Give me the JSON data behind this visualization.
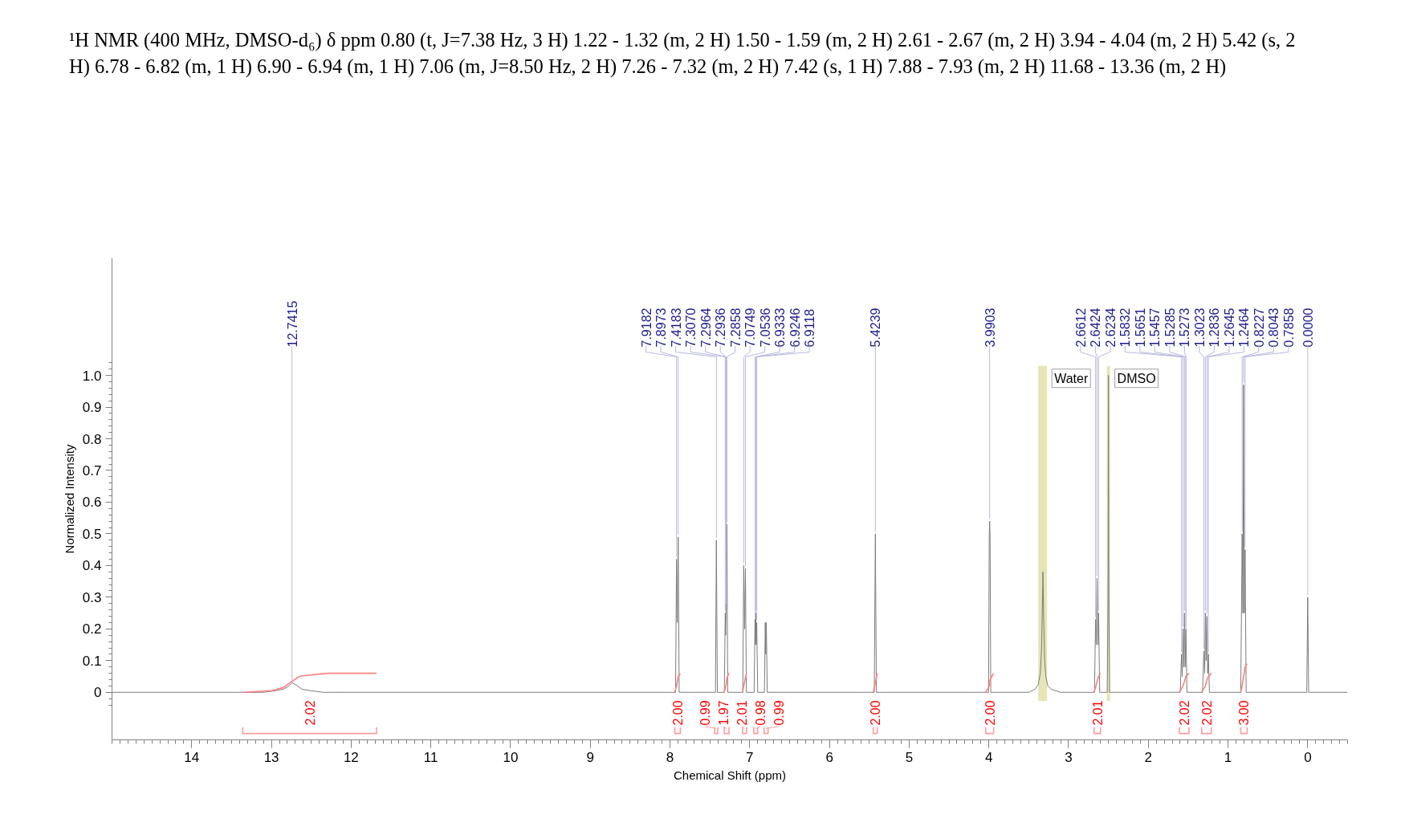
{
  "chart_data": {
    "type": "line",
    "title": "¹H NMR (400 MHz, DMSO-d₆) δ ppm 0.80 (t, J=7.38 Hz, 3 H) 1.22 - 1.32 (m, 2 H) 1.50 - 1.59 (m, 2 H) 2.61 - 2.67 (m, 2 H) 3.94 - 4.04 (m, 2 H) 5.42 (s, 2 H) 6.78 - 6.82 (m, 1 H) 6.90 - 6.94 (m, 1 H) 7.06 (m, J=8.50 Hz, 2 H) 7.26 - 7.32 (m, 2 H) 7.42 (s, 1 H) 7.88 - 7.93 (m, 2 H) 11.68 - 13.36 (m, 2 H)",
    "xlabel": "Chemical Shift (ppm)",
    "ylabel": "Normalized Intensity",
    "xlim": [
      15,
      -0.5
    ],
    "ylim": [
      -0.15,
      1.37
    ],
    "xticks": [
      14,
      13,
      12,
      11,
      10,
      9,
      8,
      7,
      6,
      5,
      4,
      3,
      2,
      1,
      0
    ],
    "yticks": [
      0,
      0.1,
      0.2,
      0.3,
      0.4,
      0.5,
      0.6,
      0.7,
      0.8,
      0.9,
      {
        "value": 1,
        "label": "1.0"
      }
    ],
    "series": [
      {
        "color": "#7c7c7c",
        "x": [
          15.0,
          13.4,
          13.1,
          12.95,
          12.85,
          12.78,
          12.7415,
          12.7,
          12.62,
          12.5,
          12.35,
          12.2,
          7.93,
          7.9182,
          7.908,
          7.8973,
          7.885,
          7.43,
          7.4183,
          7.406,
          7.318,
          7.307,
          7.302,
          7.2964,
          7.2936,
          7.2858,
          7.276,
          7.087,
          7.0749,
          7.064,
          7.0536,
          7.042,
          6.945,
          6.9333,
          6.929,
          6.9246,
          6.918,
          6.9118,
          6.9,
          6.815,
          6.805,
          6.799,
          6.792,
          6.78,
          5.437,
          5.4239,
          5.411,
          4.004,
          3.995,
          3.9903,
          3.985,
          3.976,
          3.5,
          3.42,
          3.38,
          3.355,
          3.34,
          3.33,
          3.322,
          3.314,
          3.3,
          3.285,
          3.26,
          3.22,
          3.1,
          2.675,
          2.6612,
          2.652,
          2.6424,
          2.633,
          2.6234,
          2.61,
          2.515,
          2.505,
          2.5,
          2.495,
          2.485,
          1.6,
          1.5832,
          1.574,
          1.5651,
          1.555,
          1.5457,
          1.537,
          1.5285,
          1.5273,
          1.515,
          1.32,
          1.3023,
          1.293,
          1.2836,
          1.274,
          1.2645,
          1.255,
          1.2464,
          1.233,
          0.84,
          0.8227,
          0.813,
          0.8043,
          0.795,
          0.7858,
          0.772,
          0.012,
          0,
          -0.012,
          -0.5
        ],
        "values": [
          0,
          0,
          0,
          0.005,
          0.01,
          0.02,
          0.03,
          0.025,
          0.01,
          0.005,
          0,
          0,
          0,
          0.42,
          0.22,
          0.49,
          0,
          0,
          0.48,
          0,
          0,
          0.25,
          0.18,
          0.27,
          0.3,
          0.53,
          0,
          0,
          0.4,
          0.2,
          0.39,
          0,
          0,
          0.23,
          0.15,
          0.25,
          0.15,
          0.22,
          0,
          0,
          0.22,
          0.12,
          0.22,
          0,
          0,
          0.5,
          0,
          0,
          0.5,
          0.54,
          0.5,
          0,
          0,
          0.01,
          0.025,
          0.06,
          0.13,
          0.25,
          0.38,
          0.25,
          0.1,
          0.05,
          0.02,
          0.01,
          0,
          0,
          0.23,
          0.15,
          0.36,
          0.15,
          0.25,
          0,
          0,
          0.3,
          1.0,
          0.3,
          0,
          0,
          0.12,
          0.05,
          0.2,
          0.08,
          0.25,
          0.08,
          0.2,
          0.19,
          0,
          0,
          0.13,
          0.06,
          0.25,
          0.1,
          0.24,
          0.06,
          0.12,
          0,
          0,
          0.5,
          0.25,
          0.97,
          0.25,
          0.45,
          0,
          0,
          0.3,
          0,
          0
        ]
      },
      {
        "color": "#ff8080",
        "x": [
          13.36,
          13.0,
          12.85,
          12.74,
          12.65,
          12.5,
          12.3,
          11.68,
          null,
          7.94,
          7.918,
          7.907,
          7.897,
          7.87,
          null,
          7.32,
          7.295,
          7.2858,
          7.26,
          null,
          7.09,
          7.0749,
          7.0536,
          7.04,
          null,
          5.45,
          5.4239,
          5.4,
          null,
          4.04,
          3.995,
          3.9903,
          3.985,
          3.94,
          null,
          2.68,
          2.6612,
          2.6424,
          2.6234,
          2.6,
          null,
          1.61,
          1.5651,
          1.5457,
          1.5285,
          1.49,
          null,
          1.33,
          1.2836,
          1.2645,
          1.2464,
          1.21,
          null,
          0.84,
          0.8227,
          0.8043,
          0.7858,
          0.76
        ],
        "values": [
          0,
          0.005,
          0.015,
          0.035,
          0.05,
          0.055,
          0.06,
          0.06,
          null,
          0,
          0.02,
          0.035,
          0.05,
          0.06,
          null,
          0,
          0.025,
          0.045,
          0.06,
          null,
          0,
          0.02,
          0.045,
          0.06,
          null,
          0,
          0.03,
          0.06,
          null,
          0,
          0.02,
          0.03,
          0.04,
          0.06,
          null,
          0,
          0.015,
          0.035,
          0.05,
          0.06,
          null,
          0,
          0.02,
          0.035,
          0.05,
          0.06,
          null,
          0,
          0.02,
          0.04,
          0.05,
          0.06,
          null,
          0,
          0.02,
          0.05,
          0.08,
          0.09
        ]
      },
      {
        "color": "#ff9c9c",
        "x": [
          13.36,
          13.36,
          11.68,
          11.68,
          null,
          7.94,
          7.94,
          7.87,
          7.87,
          null,
          7.44,
          7.44,
          7.4,
          7.4,
          null,
          7.32,
          7.32,
          7.26,
          7.26,
          null,
          7.09,
          7.09,
          7.04,
          7.04,
          null,
          6.95,
          6.95,
          6.9,
          6.9,
          null,
          6.82,
          6.82,
          6.77,
          6.77,
          null,
          5.45,
          5.45,
          5.4,
          5.4,
          null,
          4.04,
          4.04,
          3.94,
          3.94,
          null,
          2.68,
          2.68,
          2.6,
          2.6,
          null,
          1.61,
          1.61,
          1.49,
          1.49,
          null,
          1.33,
          1.33,
          1.21,
          1.21,
          null,
          0.84,
          0.84,
          0.76,
          0.76
        ],
        "values": [
          -0.11,
          -0.13,
          -0.13,
          -0.11,
          null,
          -0.11,
          -0.13,
          -0.13,
          -0.11,
          null,
          -0.11,
          -0.13,
          -0.13,
          -0.11,
          null,
          -0.11,
          -0.13,
          -0.13,
          -0.11,
          null,
          -0.11,
          -0.13,
          -0.13,
          -0.11,
          null,
          -0.11,
          -0.13,
          -0.13,
          -0.11,
          null,
          -0.11,
          -0.13,
          -0.13,
          -0.11,
          null,
          -0.11,
          -0.13,
          -0.13,
          -0.11,
          null,
          -0.11,
          -0.13,
          -0.13,
          -0.11,
          null,
          -0.11,
          -0.13,
          -0.13,
          -0.11,
          null,
          -0.11,
          -0.13,
          -0.13,
          -0.11,
          null,
          -0.11,
          -0.13,
          -0.13,
          -0.11,
          null,
          -0.11,
          -0.13,
          -0.13,
          -0.11
        ]
      }
    ],
    "bands": [
      {
        "axis": "x",
        "from": 3.38,
        "to": 3.27,
        "label": "Water",
        "color": "#e5e5b5"
      },
      {
        "axis": "x",
        "from": 2.52,
        "to": 2.48,
        "label": "DMSO",
        "color": "#e5e5b5"
      }
    ],
    "annotations": [
      {
        "text": "12.7415",
        "x": 12.7415,
        "y": 0.03
      },
      {
        "text": "7.9182",
        "x": 7.9182,
        "y": 0.42
      },
      {
        "text": "7.8973",
        "x": 7.8973,
        "y": 0.49
      },
      {
        "text": "7.4183",
        "x": 7.4183,
        "y": 0.48
      },
      {
        "text": "7.3070",
        "x": 7.307,
        "y": 0.25
      },
      {
        "text": "7.2964",
        "x": 7.2964,
        "y": 0.27
      },
      {
        "text": "7.2936",
        "x": 7.2936,
        "y": 0.3
      },
      {
        "text": "7.2858",
        "x": 7.2858,
        "y": 0.53
      },
      {
        "text": "7.0749",
        "x": 7.0749,
        "y": 0.4
      },
      {
        "text": "7.0536",
        "x": 7.0536,
        "y": 0.39
      },
      {
        "text": "6.9333",
        "x": 6.9333,
        "y": 0.23
      },
      {
        "text": "6.9246",
        "x": 6.9246,
        "y": 0.25
      },
      {
        "text": "6.9118",
        "x": 6.9118,
        "y": 0.22
      },
      {
        "text": "5.4239",
        "x": 5.4239,
        "y": 0.5
      },
      {
        "text": "3.9903",
        "x": 3.9903,
        "y": 0.54
      },
      {
        "text": "2.6612",
        "x": 2.6612,
        "y": 0.23
      },
      {
        "text": "2.6424",
        "x": 2.6424,
        "y": 0.36
      },
      {
        "text": "2.6234",
        "x": 2.6234,
        "y": 0.25
      },
      {
        "text": "1.5832",
        "x": 1.5832,
        "y": 0.12
      },
      {
        "text": "1.5651",
        "x": 1.5651,
        "y": 0.2
      },
      {
        "text": "1.5457",
        "x": 1.5457,
        "y": 0.25
      },
      {
        "text": "1.5285",
        "x": 1.5285,
        "y": 0.2
      },
      {
        "text": "1.5273",
        "x": 1.5273,
        "y": 0.19
      },
      {
        "text": "1.3023",
        "x": 1.3023,
        "y": 0.13
      },
      {
        "text": "1.2836",
        "x": 1.2836,
        "y": 0.25
      },
      {
        "text": "1.2645",
        "x": 1.2645,
        "y": 0.24
      },
      {
        "text": "1.2464",
        "x": 1.2464,
        "y": 0.12
      },
      {
        "text": "0.8227",
        "x": 0.8227,
        "y": 0.5
      },
      {
        "text": "0.8043",
        "x": 0.8043,
        "y": 0.97
      },
      {
        "text": "0.7858",
        "x": 0.7858,
        "y": 0.45
      },
      {
        "text": "0.0000",
        "x": 0,
        "y": 0.3
      },
      {
        "text": "2.02",
        "x": 12.52,
        "y": -0.13
      },
      {
        "text": "2.00",
        "x": 7.905,
        "y": -0.13
      },
      {
        "text": "0.99",
        "x": 7.42,
        "y": -0.13
      },
      {
        "text": "1.97",
        "x": 7.29,
        "y": -0.13
      },
      {
        "text": "2.01",
        "x": 7.065,
        "y": -0.13
      },
      {
        "text": "0.98",
        "x": 6.925,
        "y": -0.13
      },
      {
        "text": "0.99",
        "x": 6.795,
        "y": -0.13
      },
      {
        "text": "2.00",
        "x": 5.425,
        "y": -0.13
      },
      {
        "text": "2.00",
        "x": 3.99,
        "y": -0.13
      },
      {
        "text": "2.01",
        "x": 2.64,
        "y": -0.13
      },
      {
        "text": "2.02",
        "x": 1.55,
        "y": -0.13
      },
      {
        "text": "2.02",
        "x": 1.27,
        "y": -0.13
      },
      {
        "text": "3.00",
        "x": 0.8,
        "y": -0.13
      }
    ]
  }
}
